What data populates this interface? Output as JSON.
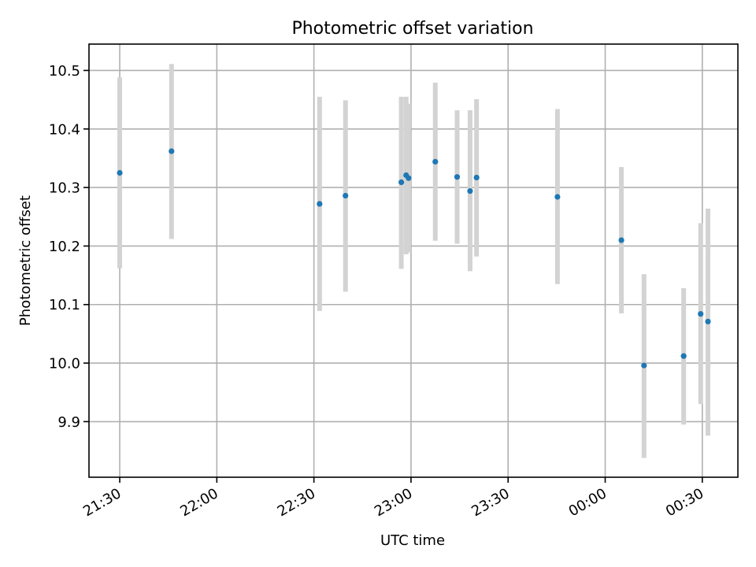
{
  "chart_data": {
    "type": "scatter",
    "title": "Photometric offset variation",
    "xlabel": "UTC time",
    "ylabel": "Photometric offset",
    "grid": true,
    "xlim": [
      "21:20:30",
      "00:41:00"
    ],
    "ylim": [
      9.805,
      10.545
    ],
    "x_ticks": [
      "21:30",
      "22:00",
      "22:30",
      "23:00",
      "23:30",
      "00:00",
      "00:30"
    ],
    "y_ticks": [
      "9.9",
      "10.0",
      "10.1",
      "10.2",
      "10.3",
      "10.4",
      "10.5"
    ],
    "colors": {
      "marker": "#1f77b4",
      "errorbar": "#d3d3d3"
    },
    "series": [
      {
        "points": [
          {
            "x": "21:30:00",
            "y": 10.325,
            "ylow": 10.162,
            "yhigh": 10.488
          },
          {
            "x": "21:46:00",
            "y": 10.362,
            "ylow": 10.212,
            "yhigh": 10.511
          },
          {
            "x": "22:31:45",
            "y": 10.272,
            "ylow": 10.089,
            "yhigh": 10.455
          },
          {
            "x": "22:39:45",
            "y": 10.286,
            "ylow": 10.122,
            "yhigh": 10.449
          },
          {
            "x": "22:57:00",
            "y": 10.309,
            "ylow": 10.161,
            "yhigh": 10.455
          },
          {
            "x": "22:58:30",
            "y": 10.321,
            "ylow": 10.186,
            "yhigh": 10.455
          },
          {
            "x": "22:59:15",
            "y": 10.316,
            "ylow": 10.189,
            "yhigh": 10.443
          },
          {
            "x": "23:07:30",
            "y": 10.344,
            "ylow": 10.209,
            "yhigh": 10.479
          },
          {
            "x": "23:14:15",
            "y": 10.318,
            "ylow": 10.204,
            "yhigh": 10.432
          },
          {
            "x": "23:18:15",
            "y": 10.294,
            "ylow": 10.157,
            "yhigh": 10.432
          },
          {
            "x": "23:20:15",
            "y": 10.317,
            "ylow": 10.182,
            "yhigh": 10.451
          },
          {
            "x": "23:45:15",
            "y": 10.284,
            "ylow": 10.135,
            "yhigh": 10.434
          },
          {
            "x": "00:05:00",
            "y": 10.21,
            "ylow": 10.085,
            "yhigh": 10.335
          },
          {
            "x": "00:12:00",
            "y": 9.996,
            "ylow": 9.838,
            "yhigh": 10.152
          },
          {
            "x": "00:24:15",
            "y": 10.012,
            "ylow": 9.895,
            "yhigh": 10.128
          },
          {
            "x": "00:29:30",
            "y": 10.084,
            "ylow": 9.93,
            "yhigh": 10.239
          },
          {
            "x": "00:31:45",
            "y": 10.071,
            "ylow": 9.876,
            "yhigh": 10.264
          }
        ]
      }
    ]
  }
}
